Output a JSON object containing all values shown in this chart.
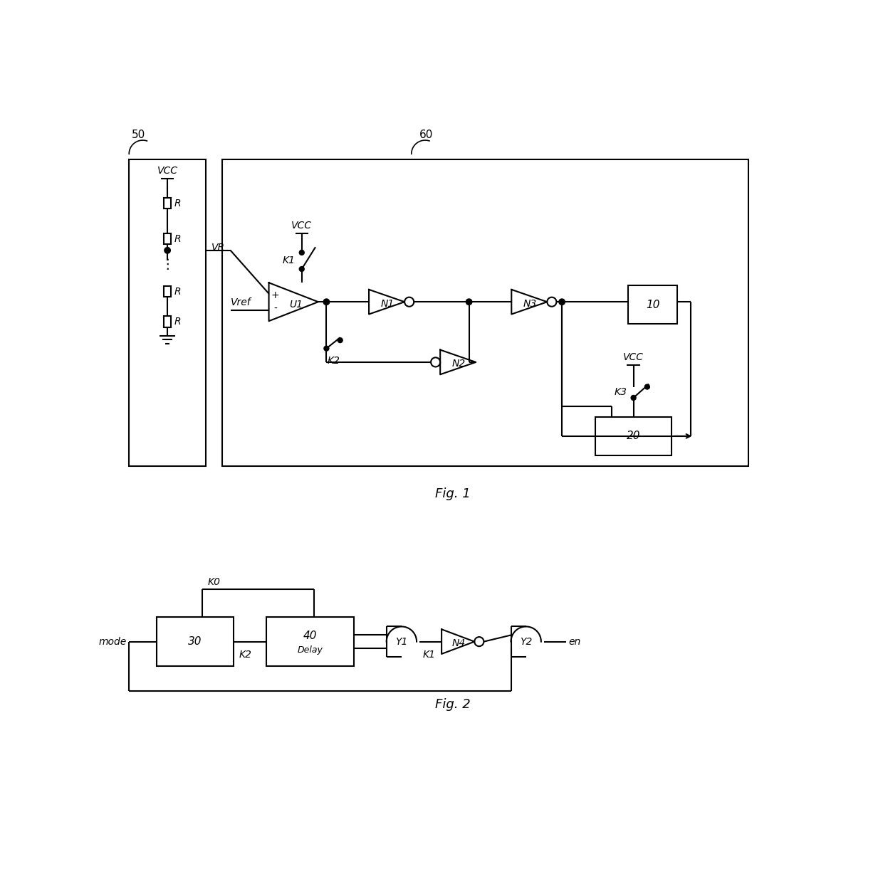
{
  "bg_color": "#ffffff",
  "lw": 1.5,
  "fs": 11,
  "fs_title": 13,
  "fs_small": 10,
  "label_50": "50",
  "label_60": "60",
  "label_10": "10",
  "label_20": "20",
  "label_30": "30",
  "label_40": "40",
  "label_U1": "U1",
  "label_N1": "N1",
  "label_N2": "N2",
  "label_N3": "N3",
  "label_N4": "N4",
  "label_Y1": "Y1",
  "label_Y2": "Y2",
  "label_K1": "K1",
  "label_K2": "K2",
  "label_K3": "K3",
  "label_K0": "K0",
  "label_VCC": "VCC",
  "label_VR": "VR",
  "label_Vref": "Vref",
  "label_R": "R",
  "label_mode": "mode",
  "label_en": "en",
  "label_Delay": "Delay",
  "label_fig1": "Fig. 1",
  "label_fig2": "Fig. 2"
}
